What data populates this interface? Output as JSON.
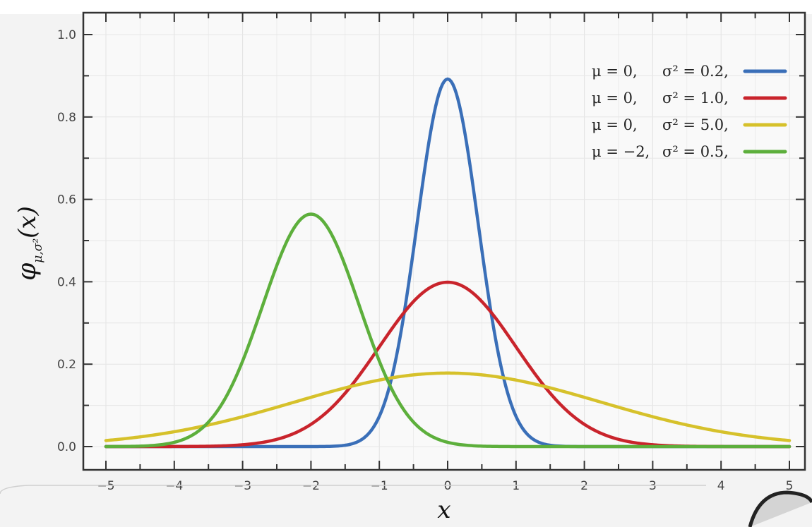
{
  "chart_data": {
    "type": "line",
    "title": "",
    "xlabel": "x",
    "ylabel": {
      "main": "φ",
      "subscript": "μ,σ²",
      "arg": "(x)"
    },
    "xlim": [
      -5,
      5
    ],
    "ylim": [
      0,
      1.0
    ],
    "x_ticks": [
      -5,
      -4,
      -3,
      -2,
      -1,
      0,
      1,
      2,
      3,
      4,
      5
    ],
    "x_tick_labels": [
      "−5",
      "−4",
      "−3",
      "−2",
      "−1",
      "0",
      "1",
      "2",
      "3",
      "4",
      "5"
    ],
    "y_ticks": [
      0.0,
      0.2,
      0.4,
      0.6,
      0.8,
      1.0
    ],
    "y_tick_labels": [
      "0.0",
      "0.2",
      "0.4",
      "0.6",
      "0.8",
      "1.0"
    ],
    "grid": true,
    "legend_position": "top-right",
    "series": [
      {
        "name": "μ = 0,   σ² = 0.2,",
        "mu_label": "μ = 0,",
        "sigma_label": "σ² = 0.2,",
        "mu": 0,
        "variance": 0.2,
        "color": "#3a6fb8",
        "x": [
          -5,
          -4,
          -3,
          -2,
          -1.5,
          -1,
          -0.75,
          -0.5,
          -0.25,
          0,
          0.25,
          0.5,
          0.75,
          1,
          1.5,
          2,
          3,
          4,
          5
        ],
        "y": [
          0,
          0,
          0,
          0,
          0.004,
          0.073,
          0.219,
          0.48,
          0.76,
          0.892,
          0.76,
          0.48,
          0.219,
          0.073,
          0.004,
          0,
          0,
          0,
          0
        ]
      },
      {
        "name": "μ = 0,   σ² = 1.0,",
        "mu_label": "μ = 0,",
        "sigma_label": "σ² = 1.0,",
        "mu": 0,
        "variance": 1.0,
        "color": "#c9242c",
        "x": [
          -5,
          -4,
          -3,
          -2.5,
          -2,
          -1.5,
          -1,
          -0.5,
          0,
          0.5,
          1,
          1.5,
          2,
          2.5,
          3,
          4,
          5
        ],
        "y": [
          0,
          0,
          0.004,
          0.018,
          0.054,
          0.13,
          0.242,
          0.352,
          0.399,
          0.352,
          0.242,
          0.13,
          0.054,
          0.018,
          0.004,
          0,
          0
        ]
      },
      {
        "name": "μ = 0,   σ² = 5.0,",
        "mu_label": "μ = 0,",
        "sigma_label": "σ² = 5.0,",
        "mu": 0,
        "variance": 5.0,
        "color": "#d6c12b",
        "x": [
          -5,
          -4,
          -3,
          -2,
          -1,
          0,
          1,
          2,
          3,
          4,
          5
        ],
        "y": [
          0.015,
          0.036,
          0.073,
          0.119,
          0.161,
          0.178,
          0.161,
          0.119,
          0.073,
          0.036,
          0.015
        ]
      },
      {
        "name": "μ = −2, σ² = 0.5,",
        "mu_label": "μ = −2,",
        "sigma_label": "σ² = 0.5,",
        "mu": -2,
        "variance": 0.5,
        "color": "#5daf3c",
        "x": [
          -5,
          -4,
          -3.5,
          -3,
          -2.5,
          -2,
          -1.5,
          -1,
          -0.5,
          0,
          1,
          2,
          3,
          4,
          5
        ],
        "y": [
          0,
          0.01,
          0.059,
          0.208,
          0.44,
          0.564,
          0.44,
          0.208,
          0.059,
          0.01,
          0,
          0,
          0,
          0,
          0
        ]
      }
    ]
  }
}
